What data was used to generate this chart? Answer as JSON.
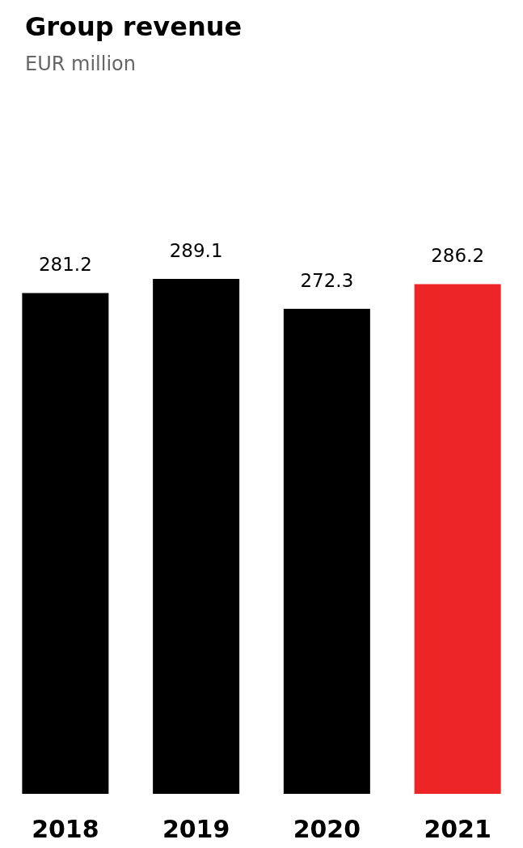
{
  "chart_data": {
    "type": "bar",
    "title": "Group revenue",
    "subtitle": "EUR million",
    "categories": [
      "2018",
      "2019",
      "2020",
      "2021"
    ],
    "values": [
      281.2,
      289.1,
      272.3,
      286.2
    ],
    "colors": [
      "#000000",
      "#000000",
      "#000000",
      "#ee2527"
    ],
    "data_labels": true
  }
}
